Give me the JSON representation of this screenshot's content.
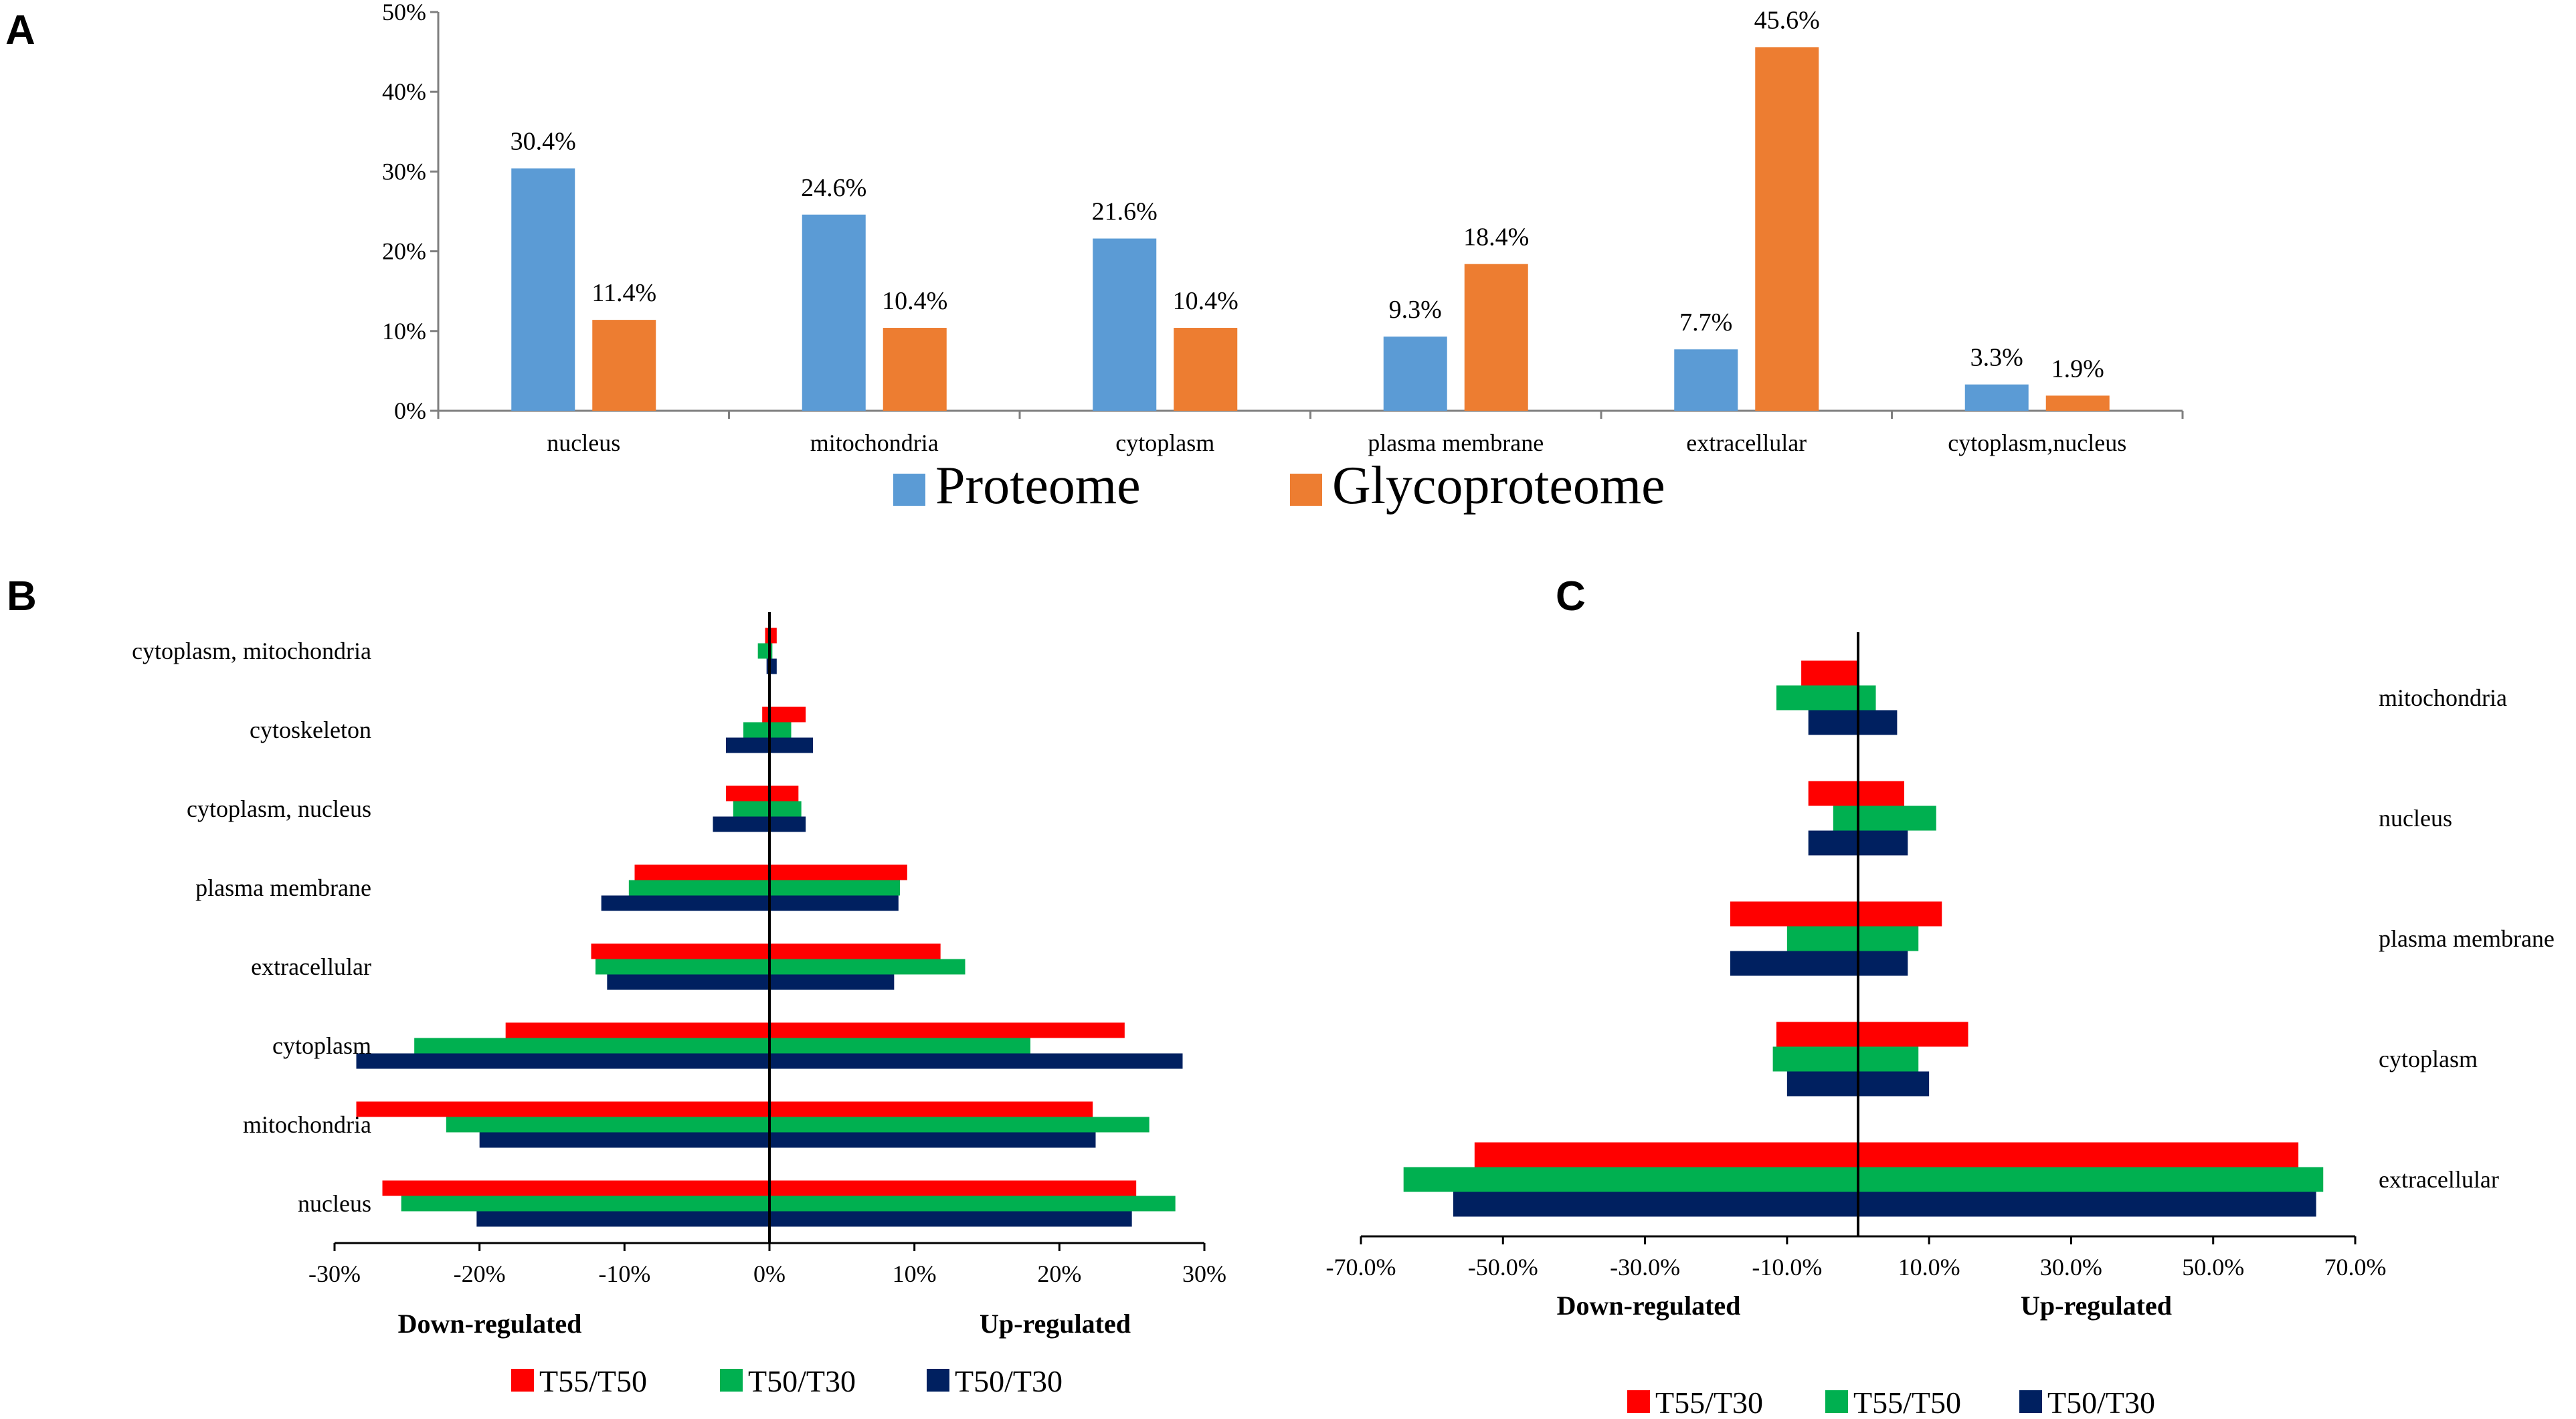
{
  "panels": {
    "a": {
      "label": "A"
    },
    "b": {
      "label": "B"
    },
    "c": {
      "label": "C"
    }
  },
  "chart_data": [
    {
      "id": "A",
      "type": "bar",
      "categories": [
        "nucleus",
        "mitochondria",
        "cytoplasm",
        "plasma membrane",
        "extracellular",
        "cytoplasm,nucleus"
      ],
      "series": [
        {
          "name": "Proteome",
          "color": "#5b9bd5",
          "values": [
            30.4,
            24.6,
            21.6,
            9.3,
            7.7,
            3.3
          ],
          "labels": [
            "30.4%",
            "24.6%",
            "21.6%",
            "9.3%",
            "7.7%",
            "3.3%"
          ]
        },
        {
          "name": "Glycoproteome",
          "color": "#ed7d31",
          "values": [
            11.4,
            10.4,
            10.4,
            18.4,
            45.6,
            1.9
          ],
          "labels": [
            "11.4%",
            "10.4%",
            "10.4%",
            "18.4%",
            "45.6%",
            "1.9%"
          ]
        }
      ],
      "ylim": [
        0,
        50
      ],
      "yticks": [
        0,
        10,
        20,
        30,
        40,
        50
      ],
      "ytick_labels": [
        "0%",
        "10%",
        "20%",
        "30%",
        "40%",
        "50%"
      ],
      "title": "",
      "xlabel": "",
      "ylabel": "",
      "legend": "bottom"
    },
    {
      "id": "B",
      "type": "bar",
      "orientation": "horizontal",
      "categories": [
        "cytoplasm, mitochondria",
        "cytoskeleton",
        "cytoplasm, nucleus",
        "plasma membrane",
        "extracellular",
        "cytoplasm",
        "mitochondria",
        "nucleus"
      ],
      "series": [
        {
          "name": "T55/T50",
          "color": "#ff0000",
          "up": [
            0.5,
            2.5,
            2.0,
            9.5,
            11.8,
            24.5,
            22.3,
            25.3
          ],
          "down": [
            -0.3,
            -0.5,
            -3.0,
            -9.3,
            -12.3,
            -18.2,
            -28.5,
            -26.7
          ]
        },
        {
          "name": "T50/T30",
          "color": "#00b050",
          "up": [
            0.2,
            1.5,
            2.2,
            9.0,
            13.5,
            18.0,
            26.2,
            28.0
          ],
          "down": [
            -0.8,
            -1.8,
            -2.5,
            -9.7,
            -12.0,
            -24.5,
            -22.3,
            -25.4
          ]
        },
        {
          "name": "T50/T30",
          "color": "#002060",
          "up": [
            0.5,
            3.0,
            2.5,
            8.9,
            8.6,
            28.5,
            22.5,
            25.0
          ],
          "down": [
            -0.2,
            -3.0,
            -3.9,
            -11.6,
            -11.2,
            -28.5,
            -20.0,
            -20.2
          ]
        }
      ],
      "xlim": [
        -30,
        30
      ],
      "xticks": [
        -30,
        -20,
        -10,
        0,
        10,
        20,
        30
      ],
      "xtick_labels": [
        "-30%",
        "-20%",
        "-10%",
        "0%",
        "10%",
        "20%",
        "30%"
      ],
      "down_label": "Down-regulated",
      "up_label": "Up-regulated",
      "legend": "bottom"
    },
    {
      "id": "C",
      "type": "bar",
      "orientation": "horizontal",
      "categories": [
        "mitochondria",
        "nucleus",
        "plasma membrane",
        "cytoplasm",
        "extracellular"
      ],
      "series": [
        {
          "name": "T55/T30",
          "color": "#ff0000",
          "up": [
            0.0,
            6.5,
            11.8,
            15.5,
            62.0
          ],
          "down": [
            -8.0,
            -7.0,
            -18.0,
            -11.5,
            -54.0
          ]
        },
        {
          "name": "T55/T50",
          "color": "#00b050",
          "up": [
            2.5,
            11.0,
            8.5,
            8.5,
            65.5
          ],
          "down": [
            -11.5,
            -3.5,
            -10.0,
            -12.0,
            -64.0
          ]
        },
        {
          "name": "T50/T30",
          "color": "#002060",
          "up": [
            5.5,
            7.0,
            7.0,
            10.0,
            64.5
          ],
          "down": [
            -7.0,
            -7.0,
            -18.0,
            -10.0,
            -57.0
          ]
        }
      ],
      "xlim": [
        -70,
        70
      ],
      "xticks": [
        -70,
        -50,
        -30,
        -10,
        10,
        30,
        50,
        70
      ],
      "xtick_labels": [
        "-70.0%",
        "-50.0%",
        "-30.0%",
        "-10.0%",
        "10.0%",
        "30.0%",
        "50.0%",
        "70.0%"
      ],
      "down_label": "Down-regulated",
      "up_label": "Up-regulated",
      "legend": "bottom"
    }
  ]
}
